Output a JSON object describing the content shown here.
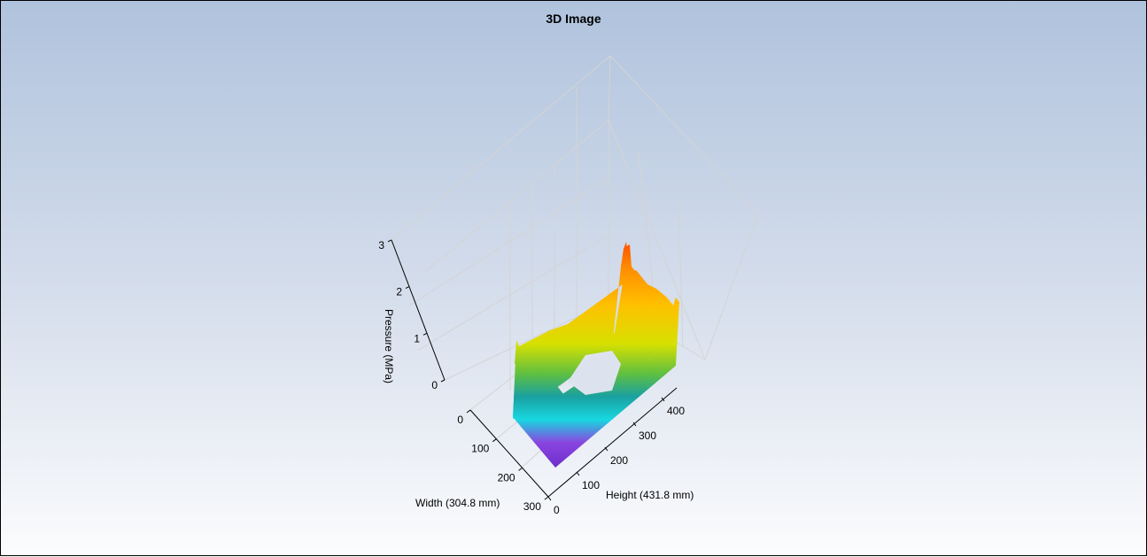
{
  "chart_data": {
    "type": "surface",
    "title": "3D Image",
    "x_axis": {
      "label": "Height (431.8 mm)",
      "range": [
        0,
        431.8
      ],
      "ticks": [
        0,
        100,
        200,
        300,
        400
      ]
    },
    "y_axis": {
      "label": "Width (304.8 mm)",
      "range": [
        0,
        304.8
      ],
      "ticks": [
        0,
        100,
        200,
        300
      ]
    },
    "z_axis": {
      "label": "Pressure  (MPa)",
      "range": [
        0,
        3
      ],
      "ticks": [
        0,
        1,
        2,
        3
      ]
    },
    "grid": true,
    "colormap": [
      "#7b2fd0",
      "#3a6be0",
      "#18d8e0",
      "#4cc060",
      "#f0e000",
      "#ff9a00",
      "#ff5000"
    ],
    "description_shape": "rectangular ring of pressure, higher (~2.5 MPa) toward the far Height end"
  }
}
